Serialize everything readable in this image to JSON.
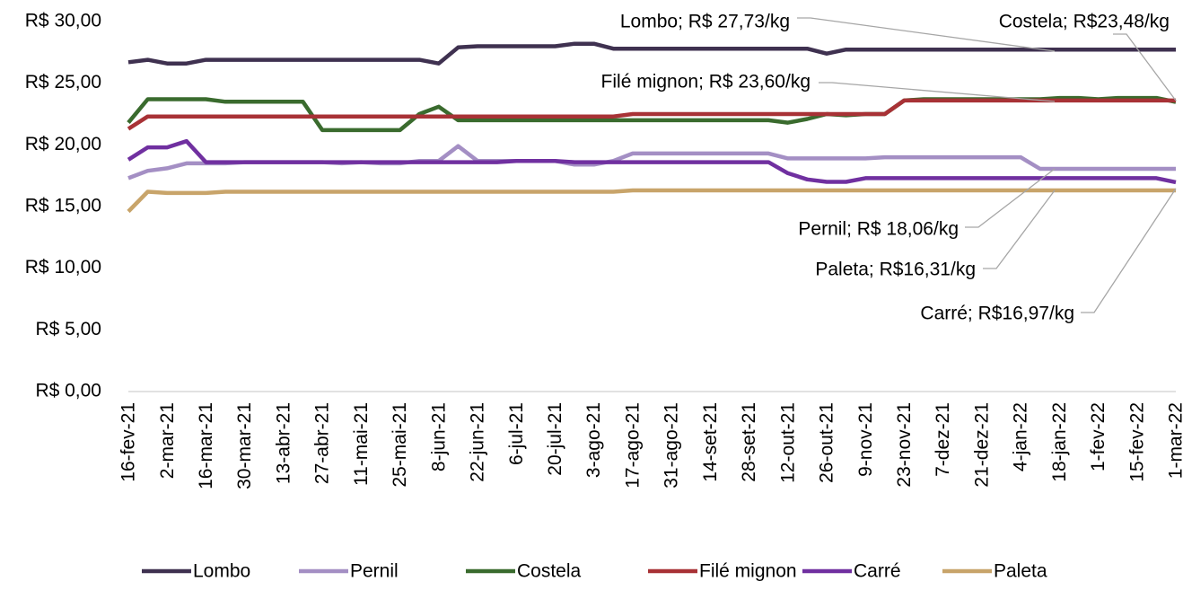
{
  "chart_data": {
    "type": "line",
    "categories": [
      "16-fev-21",
      null,
      "2-mar-21",
      null,
      "16-mar-21",
      null,
      "30-mar-21",
      null,
      "13-abr-21",
      null,
      "27-abr-21",
      null,
      "11-mai-21",
      null,
      "25-mai-21",
      null,
      "8-jun-21",
      null,
      "22-jun-21",
      null,
      "6-jul-21",
      null,
      "20-jul-21",
      null,
      "3-ago-21",
      null,
      "17-ago-21",
      null,
      "31-ago-21",
      null,
      "14-set-21",
      null,
      "28-set-21",
      null,
      "12-out-21",
      null,
      "26-out-21",
      null,
      "9-nov-21",
      null,
      "23-nov-21",
      null,
      "7-dez-21",
      null,
      "21-dez-21",
      null,
      "4-jan-22",
      null,
      "18-jan-22",
      null,
      "1-fev-22",
      null,
      "15-fev-22",
      null,
      "1-mar-22"
    ],
    "series": [
      {
        "name": "Lombo",
        "color": "#3f3150",
        "values": [
          26.7,
          26.9,
          26.6,
          26.6,
          26.9,
          26.9,
          26.9,
          26.9,
          26.9,
          26.9,
          26.9,
          26.9,
          26.9,
          26.9,
          26.9,
          26.9,
          26.6,
          27.9,
          28.0,
          28.0,
          28.0,
          28.0,
          28.0,
          28.2,
          28.2,
          27.8,
          27.8,
          27.8,
          27.8,
          27.8,
          27.8,
          27.8,
          27.8,
          27.8,
          27.8,
          27.8,
          27.4,
          27.73,
          27.73,
          27.73,
          27.73,
          27.73,
          27.73,
          27.73,
          27.73,
          27.73,
          27.73,
          27.73,
          27.73,
          27.73,
          27.73,
          27.73,
          27.73,
          27.73,
          27.73
        ]
      },
      {
        "name": "Pernil",
        "color": "#a48fc4",
        "values": [
          17.3,
          17.9,
          18.1,
          18.5,
          18.5,
          18.5,
          18.6,
          18.6,
          18.6,
          18.6,
          18.6,
          18.5,
          18.6,
          18.5,
          18.5,
          18.7,
          18.7,
          19.9,
          18.7,
          18.7,
          18.7,
          18.7,
          18.7,
          18.4,
          18.4,
          18.7,
          19.3,
          19.3,
          19.3,
          19.3,
          19.3,
          19.3,
          19.3,
          19.3,
          18.9,
          18.9,
          18.9,
          18.9,
          18.9,
          19.0,
          19.0,
          19.0,
          19.0,
          19.0,
          19.0,
          19.0,
          19.0,
          18.06,
          18.06,
          18.06,
          18.06,
          18.06,
          18.06,
          18.06,
          18.06
        ]
      },
      {
        "name": "Costela",
        "color": "#3a6b2e",
        "values": [
          21.8,
          23.7,
          23.7,
          23.7,
          23.7,
          23.5,
          23.5,
          23.5,
          23.5,
          23.5,
          21.2,
          21.2,
          21.2,
          21.2,
          21.2,
          22.5,
          23.1,
          22.0,
          22.0,
          22.0,
          22.0,
          22.0,
          22.0,
          22.0,
          22.0,
          22.0,
          22.0,
          22.0,
          22.0,
          22.0,
          22.0,
          22.0,
          22.0,
          22.0,
          21.8,
          22.1,
          22.5,
          22.4,
          22.5,
          22.5,
          23.6,
          23.7,
          23.7,
          23.7,
          23.7,
          23.7,
          23.7,
          23.7,
          23.8,
          23.8,
          23.7,
          23.8,
          23.8,
          23.8,
          23.48
        ]
      },
      {
        "name": "Filé mignon",
        "color": "#a83236",
        "values": [
          21.3,
          22.3,
          22.3,
          22.3,
          22.3,
          22.3,
          22.3,
          22.3,
          22.3,
          22.3,
          22.3,
          22.3,
          22.3,
          22.3,
          22.3,
          22.3,
          22.3,
          22.3,
          22.3,
          22.3,
          22.3,
          22.3,
          22.3,
          22.3,
          22.3,
          22.3,
          22.5,
          22.5,
          22.5,
          22.5,
          22.5,
          22.5,
          22.5,
          22.5,
          22.5,
          22.5,
          22.5,
          22.5,
          22.5,
          22.5,
          23.6,
          23.6,
          23.6,
          23.6,
          23.6,
          23.6,
          23.6,
          23.6,
          23.6,
          23.6,
          23.6,
          23.6,
          23.6,
          23.6,
          23.6
        ]
      },
      {
        "name": "Carré",
        "color": "#7030a0",
        "values": [
          18.8,
          19.8,
          19.8,
          20.3,
          18.6,
          18.6,
          18.6,
          18.6,
          18.6,
          18.6,
          18.6,
          18.6,
          18.6,
          18.6,
          18.6,
          18.6,
          18.6,
          18.6,
          18.6,
          18.6,
          18.7,
          18.7,
          18.7,
          18.6,
          18.6,
          18.6,
          18.6,
          18.6,
          18.6,
          18.6,
          18.6,
          18.6,
          18.6,
          18.6,
          17.7,
          17.2,
          17.0,
          17.0,
          17.3,
          17.3,
          17.3,
          17.3,
          17.3,
          17.3,
          17.3,
          17.3,
          17.3,
          17.3,
          17.3,
          17.3,
          17.3,
          17.3,
          17.3,
          17.3,
          16.97
        ]
      },
      {
        "name": "Paleta",
        "color": "#c8a46a",
        "values": [
          14.6,
          16.2,
          16.1,
          16.1,
          16.1,
          16.2,
          16.2,
          16.2,
          16.2,
          16.2,
          16.2,
          16.2,
          16.2,
          16.2,
          16.2,
          16.2,
          16.2,
          16.2,
          16.2,
          16.2,
          16.2,
          16.2,
          16.2,
          16.2,
          16.2,
          16.2,
          16.31,
          16.31,
          16.31,
          16.31,
          16.31,
          16.31,
          16.31,
          16.31,
          16.31,
          16.31,
          16.31,
          16.31,
          16.31,
          16.31,
          16.31,
          16.31,
          16.31,
          16.31,
          16.31,
          16.31,
          16.31,
          16.31,
          16.31,
          16.31,
          16.31,
          16.31,
          16.31,
          16.31,
          16.31
        ]
      }
    ],
    "ylim": [
      0,
      30
    ],
    "yticks": [
      {
        "value": 0,
        "label": "R$ 0,00"
      },
      {
        "value": 5,
        "label": "R$ 5,00"
      },
      {
        "value": 10,
        "label": "R$ 10,00"
      },
      {
        "value": 15,
        "label": "R$ 15,00"
      },
      {
        "value": 20,
        "label": "R$ 20,00"
      },
      {
        "value": 25,
        "label": "R$ 25,00"
      },
      {
        "value": 30,
        "label": "R$ 30,00"
      }
    ],
    "annotations": [
      "Lombo; R$ 27,73/kg",
      "Costela; R$23,48/kg",
      "Filé mignon; R$ 23,60/kg",
      "Pernil; R$ 18,06/kg",
      "Paleta; R$16,31/kg",
      "Carré; R$16,97/kg"
    ],
    "legend": "bottom"
  }
}
